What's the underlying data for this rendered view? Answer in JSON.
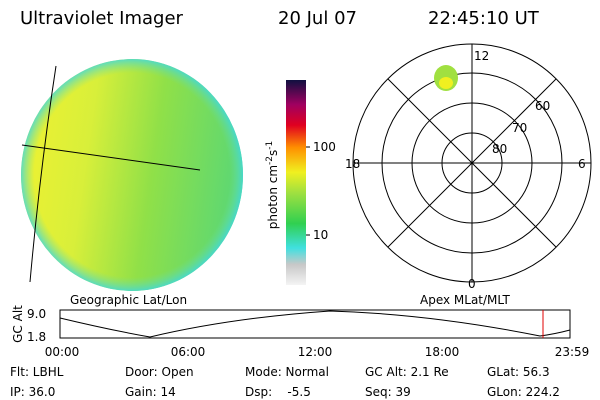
{
  "header": {
    "title": "Ultraviolet Imager",
    "date": "20 Jul 07",
    "time": "22:45:10 UT"
  },
  "colorbar": {
    "label": [
      "photon cm",
      "-2",
      "s",
      "-1"
    ],
    "ticks": [
      "100",
      "10"
    ]
  },
  "polar": {
    "mlt_labels": [
      "12",
      "18",
      "6",
      "0"
    ],
    "mlat_labels": [
      "60",
      "70",
      "80"
    ]
  },
  "panels": {
    "left": "Geographic Lat/Lon",
    "right": "Apex MLat/MLT"
  },
  "orbit": {
    "ylabel": "GC Alt",
    "yticks": [
      "9.0",
      "1.8"
    ],
    "xticks": [
      "00:00",
      "06:00",
      "12:00",
      "18:00",
      "23:59"
    ]
  },
  "footer": {
    "rows": [
      [
        "Flt: LBHL",
        "Door: Open",
        "Mode: Normal",
        "GC Alt: 2.1 Re",
        "GLat: 56.3"
      ],
      [
        "IP: 36.0",
        "Gain: 14",
        "Dsp:    -5.5",
        "Seq: 39",
        "GLon: 224.2"
      ]
    ]
  }
}
